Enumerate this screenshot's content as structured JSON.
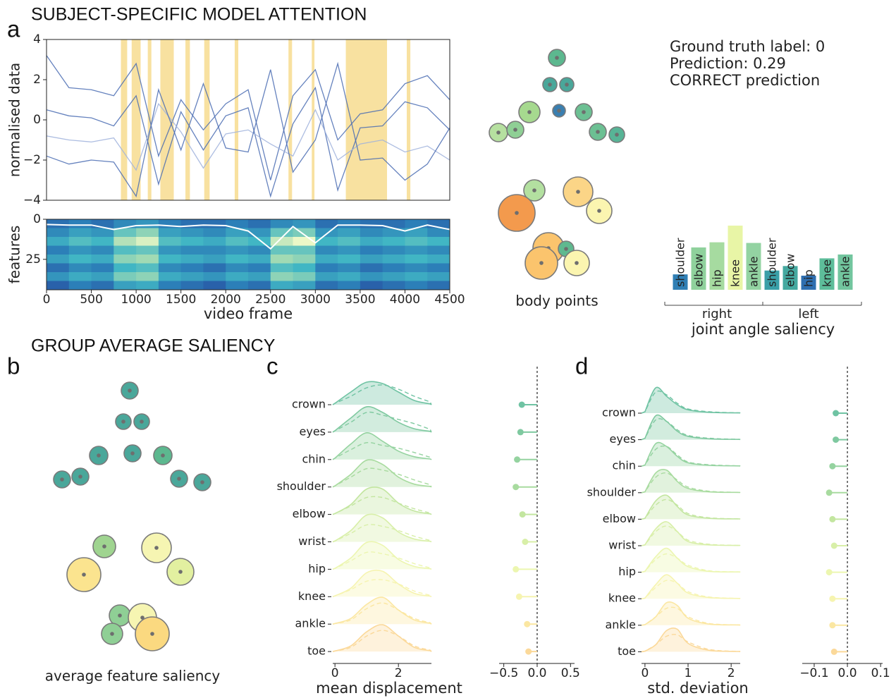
{
  "headings": [
    "SUBJECT-SPECIFIC MODEL ATTENTION",
    "GROUP AVERAGE SALIENCY"
  ],
  "chart_data": [
    {
      "type": "line",
      "panel": "a",
      "ylabel": "normalised data",
      "xlim": [
        0,
        4500
      ],
      "ylim": [
        -4,
        4
      ],
      "yticks": [
        4,
        2,
        0,
        {
          "value": -2,
          "label": "−2"
        },
        {
          "value": -4,
          "label": "−4"
        }
      ],
      "highlight_color": "#f8e1a0",
      "highlights": [
        [
          830,
          900
        ],
        [
          950,
          1050
        ],
        [
          1130,
          1170
        ],
        [
          1270,
          1420
        ],
        [
          1550,
          1600
        ],
        [
          1760,
          1820
        ],
        [
          2100,
          2140
        ],
        [
          2700,
          2740
        ],
        [
          2960,
          2990
        ],
        [
          3340,
          3800
        ],
        [
          4020,
          4060
        ]
      ],
      "x": [
        0,
        250,
        500,
        750,
        1000,
        1250,
        1500,
        1750,
        2000,
        2250,
        2500,
        2750,
        3000,
        3250,
        3500,
        3750,
        4000,
        4250,
        4500
      ],
      "series": [
        {
          "color": "#4a6cb3",
          "values": [
            3.2,
            1.6,
            1.5,
            1.2,
            2.8,
            -1.8,
            1.0,
            -0.5,
            0.8,
            1.5,
            -3.0,
            1.2,
            2.5,
            -1.0,
            0.3,
            0.5,
            1.8,
            2.2,
            1.0
          ]
        },
        {
          "color": "#4a6cb3",
          "values": [
            0.5,
            0.2,
            0.1,
            -0.3,
            1.2,
            -3.2,
            0.4,
            -1.5,
            0.2,
            0.6,
            -3.8,
            -0.2,
            1.6,
            -3.5,
            -0.4,
            -0.3,
            0.9,
            0.6,
            -0.5
          ]
        },
        {
          "color": "#9fb2dc",
          "values": [
            -0.8,
            -1.0,
            -1.1,
            -0.9,
            -2.5,
            0.8,
            -0.6,
            -2.4,
            -0.7,
            -0.5,
            -1.2,
            -1.8,
            0.5,
            -2.0,
            -1.2,
            -1.0,
            -1.6,
            -1.3,
            -2.0
          ]
        },
        {
          "color": "#4a6cb3",
          "values": [
            -1.8,
            -2.2,
            -2.0,
            -2.1,
            -3.8,
            1.5,
            -1.5,
            1.8,
            -1.4,
            -1.6,
            2.5,
            -2.6,
            -1.0,
            2.8,
            -2.0,
            -1.9,
            -3.0,
            -2.2,
            -0.4
          ]
        }
      ]
    },
    {
      "type": "heatmap",
      "ylabel": "features",
      "xlabel": "video frame",
      "xlim": [
        0,
        4500
      ],
      "xticks": [
        0,
        500,
        1000,
        1500,
        2000,
        2500,
        3000,
        3500,
        4000,
        4500
      ],
      "ylim": [
        0,
        44
      ],
      "yticks": [
        0,
        25
      ],
      "colormap": [
        "#253494",
        "#2c7fb8",
        "#41b6c4",
        "#a1dab4",
        "#ffffcc"
      ],
      "values": [
        [
          0.2,
          0.25,
          0.2,
          0.3,
          0.35,
          0.25,
          0.2,
          0.2,
          0.25,
          0.2,
          0.3,
          0.35,
          0.2,
          0.25,
          0.2,
          0.2,
          0.25,
          0.2
        ],
        [
          0.3,
          0.4,
          0.35,
          0.6,
          0.7,
          0.4,
          0.35,
          0.3,
          0.4,
          0.35,
          0.6,
          0.65,
          0.35,
          0.4,
          0.3,
          0.35,
          0.4,
          0.3
        ],
        [
          0.45,
          0.55,
          0.5,
          0.8,
          0.9,
          0.55,
          0.5,
          0.45,
          0.55,
          0.5,
          0.85,
          0.95,
          0.5,
          0.55,
          0.45,
          0.5,
          0.55,
          0.5
        ],
        [
          0.25,
          0.35,
          0.3,
          0.55,
          0.6,
          0.35,
          0.3,
          0.3,
          0.35,
          0.3,
          0.6,
          0.6,
          0.3,
          0.35,
          0.25,
          0.3,
          0.35,
          0.3
        ],
        [
          0.4,
          0.5,
          0.45,
          0.7,
          0.75,
          0.5,
          0.45,
          0.4,
          0.5,
          0.45,
          0.75,
          0.7,
          0.45,
          0.5,
          0.4,
          0.45,
          0.5,
          0.45
        ],
        [
          0.2,
          0.3,
          0.25,
          0.5,
          0.55,
          0.3,
          0.25,
          0.2,
          0.3,
          0.25,
          0.55,
          0.5,
          0.25,
          0.3,
          0.2,
          0.25,
          0.3,
          0.25
        ],
        [
          0.35,
          0.45,
          0.4,
          0.65,
          0.7,
          0.45,
          0.4,
          0.35,
          0.45,
          0.4,
          0.7,
          0.65,
          0.4,
          0.45,
          0.35,
          0.4,
          0.45,
          0.4
        ],
        [
          0.15,
          0.25,
          0.2,
          0.4,
          0.45,
          0.25,
          0.2,
          0.15,
          0.25,
          0.2,
          0.45,
          0.4,
          0.2,
          0.25,
          0.15,
          0.2,
          0.25,
          0.2
        ]
      ],
      "x": [
        0,
        250,
        500,
        750,
        1000,
        1250,
        1500,
        1750,
        2000,
        2250,
        2500,
        2750,
        3000,
        3250,
        3500,
        3750,
        4000,
        4250,
        4500
      ],
      "attention": [
        0.92,
        0.9,
        0.9,
        0.75,
        0.88,
        0.9,
        0.85,
        0.9,
        0.88,
        0.7,
        0.1,
        0.85,
        0.3,
        0.9,
        0.9,
        0.88,
        0.7,
        0.9,
        0.75
      ]
    },
    {
      "type": "bubble",
      "xlabel": "body points",
      "x": [
        50,
        45,
        57,
        30.5,
        51.5,
        69,
        8.5,
        20.5,
        79,
        92.5,
        34,
        21.5,
        65,
        80,
        44,
        39,
        56.5,
        64
      ],
      "y": [
        6,
        25,
        25,
        44.5,
        43.5,
        44.5,
        59,
        57,
        58.5,
        60.5,
        100,
        116,
        101,
        114.5,
        141,
        151.5,
        141.5,
        151.5
      ],
      "size": [
        12,
        10,
        10,
        15,
        9,
        12,
        13,
        12,
        12,
        11,
        15,
        26,
        21,
        18,
        22,
        23,
        11,
        18
      ],
      "colors": [
        "#5cb88f",
        "#4aa79a",
        "#4aa79a",
        "#a6d98f",
        "#3a7fb0",
        "#6cc093",
        "#b6e0a0",
        "#8fcf95",
        "#6cc093",
        "#57b496",
        "#b3e0a0",
        "#f39a4d",
        "#fbd587",
        "#fbf5b0",
        "#fbc46d",
        "#fbc46d",
        "#5fb98f",
        "#fbf5b0"
      ]
    },
    {
      "type": "bar",
      "annotations": [
        "Ground truth label: 0",
        "Prediction: 0.29",
        "CORRECT prediction"
      ],
      "categories": [
        "shoulder",
        "elbow",
        "hip",
        "knee",
        "ankle",
        "shoulder",
        "elbow",
        "hip",
        "knee",
        "ankle"
      ],
      "group_labels": [
        "right",
        "left"
      ],
      "xlabel": "joint angle saliency",
      "ylim": [
        0,
        1
      ],
      "values": [
        0.24,
        0.66,
        0.74,
        1.0,
        0.73,
        0.3,
        0.37,
        0.22,
        0.49,
        0.55
      ],
      "colors": [
        "#2f7fb5",
        "#8fd19c",
        "#a6dba0",
        "#e8f5a6",
        "#93d3a2",
        "#3a9fa8",
        "#45a9a0",
        "#2f6fb0",
        "#5dbd9a",
        "#72c59e"
      ]
    },
    {
      "type": "bubble",
      "panel": "b",
      "xlabel": "average feature saliency",
      "x": [
        62,
        57.5,
        70.5,
        40,
        64,
        85.5,
        14,
        27,
        97,
        113.5,
        44,
        29.5,
        81,
        98,
        55,
        71,
        49.5,
        78
      ],
      "y": [
        7,
        29,
        29,
        53,
        51.5,
        53,
        70,
        68,
        69.5,
        72,
        117.5,
        137.5,
        118.5,
        135.5,
        166.5,
        168,
        179.5,
        179.5
      ],
      "size": [
        12,
        11,
        11,
        13,
        12,
        13,
        12,
        12,
        12,
        12,
        16,
        24,
        21,
        19,
        15,
        20,
        15,
        24
      ],
      "colors": [
        "#4aa79a",
        "#4aa79a",
        "#4aa79a",
        "#4aa79a",
        "#4aa79a",
        "#5cb88f",
        "#4aa79a",
        "#4aa79a",
        "#4aa79a",
        "#4aa79a",
        "#9fd490",
        "#fbe48f",
        "#f6f5b2",
        "#e2f0a0",
        "#8fcf95",
        "#f6f5b2",
        "#8fcf95",
        "#fbd980"
      ]
    },
    {
      "type": "ridgeline",
      "panel": "c",
      "xlabel": "mean displacement",
      "xlim": [
        -0.07,
        3.04
      ],
      "xticks": [
        0,
        2
      ],
      "categories": [
        "crown",
        "eyes",
        "chin",
        "shoulder",
        "elbow",
        "wrist",
        "hip",
        "knee",
        "ankle",
        "toe"
      ],
      "colors": [
        "#6fc3a3",
        "#7fc9a0",
        "#95d3a0",
        "#a8db9f",
        "#c3e6a0",
        "#d8efa8",
        "#ecf6b0",
        "#f6f4b0",
        "#fbe7a2",
        "#fbd99a"
      ],
      "x": [
        0,
        0.5,
        1,
        1.5,
        2,
        2.5,
        3
      ],
      "solid": [
        [
          0.05,
          0.45,
          0.8,
          0.75,
          0.45,
          0.15,
          0.03
        ],
        [
          0.05,
          0.5,
          0.9,
          0.7,
          0.35,
          0.12,
          0.03
        ],
        [
          0.05,
          0.55,
          0.95,
          0.65,
          0.3,
          0.1,
          0.02
        ],
        [
          0.04,
          0.45,
          0.95,
          0.8,
          0.35,
          0.1,
          0.02
        ],
        [
          0.03,
          0.35,
          0.9,
          0.9,
          0.4,
          0.12,
          0.02
        ],
        [
          0.03,
          0.4,
          0.95,
          0.85,
          0.35,
          0.1,
          0.02
        ],
        [
          0.03,
          0.4,
          0.95,
          0.85,
          0.35,
          0.1,
          0.02
        ],
        [
          0.03,
          0.3,
          0.85,
          0.9,
          0.45,
          0.12,
          0.02
        ],
        [
          0.02,
          0.2,
          0.7,
          0.95,
          0.5,
          0.15,
          0.03
        ],
        [
          0.02,
          0.2,
          0.7,
          0.95,
          0.55,
          0.15,
          0.03
        ]
      ],
      "dashed": [
        [
          0.05,
          0.3,
          0.6,
          0.7,
          0.55,
          0.3,
          0.1
        ],
        [
          0.05,
          0.35,
          0.7,
          0.6,
          0.45,
          0.3,
          0.1
        ],
        [
          0.05,
          0.35,
          0.6,
          0.5,
          0.4,
          0.25,
          0.08
        ],
        [
          0.04,
          0.35,
          0.65,
          0.6,
          0.45,
          0.25,
          0.08
        ],
        [
          0.03,
          0.3,
          0.6,
          0.6,
          0.4,
          0.2,
          0.05
        ],
        [
          0.03,
          0.3,
          0.6,
          0.55,
          0.4,
          0.2,
          0.05
        ],
        [
          0.03,
          0.3,
          0.6,
          0.55,
          0.4,
          0.2,
          0.05
        ],
        [
          0.03,
          0.25,
          0.55,
          0.6,
          0.45,
          0.2,
          0.05
        ],
        [
          0.02,
          0.15,
          0.55,
          0.75,
          0.5,
          0.2,
          0.05
        ],
        [
          0.02,
          0.15,
          0.55,
          0.75,
          0.55,
          0.2,
          0.05
        ]
      ]
    },
    {
      "type": "lollipop",
      "xlim": [
        -0.57,
        0.56
      ],
      "xticks": [
        {
          "value": -0.5,
          "label": "−0.5"
        },
        {
          "value": 0,
          "label": "0.0"
        },
        0.5
      ],
      "values": [
        -0.23,
        -0.25,
        -0.3,
        -0.32,
        -0.22,
        -0.18,
        -0.32,
        -0.27,
        -0.15,
        -0.13
      ],
      "colors": [
        "#6fc3a3",
        "#7fc9a0",
        "#95d3a0",
        "#a8db9f",
        "#c3e6a0",
        "#d8efa8",
        "#ecf6b0",
        "#f6f4b0",
        "#fbe7a2",
        "#fbd99a"
      ]
    },
    {
      "type": "ridgeline",
      "panel": "d",
      "xlabel": "std. deviation",
      "xlim": [
        -0.08,
        2.21
      ],
      "xticks": [
        0,
        1,
        2
      ],
      "categories": [
        "crown",
        "eyes",
        "chin",
        "shoulder",
        "elbow",
        "wrist",
        "hip",
        "knee",
        "ankle",
        "toe"
      ],
      "colors": [
        "#6fc3a3",
        "#7fc9a0",
        "#95d3a0",
        "#a8db9f",
        "#c3e6a0",
        "#d8efa8",
        "#ecf6b0",
        "#f6f4b0",
        "#fbe7a2",
        "#fbd99a"
      ],
      "x": [
        0,
        0.25,
        0.5,
        0.75,
        1,
        1.5,
        2.2
      ],
      "solid": [
        [
          0.05,
          0.9,
          0.6,
          0.3,
          0.12,
          0.03,
          0.01
        ],
        [
          0.05,
          0.85,
          0.65,
          0.3,
          0.12,
          0.03,
          0.01
        ],
        [
          0.04,
          0.8,
          0.7,
          0.35,
          0.12,
          0.03,
          0.01
        ],
        [
          0.03,
          0.7,
          0.8,
          0.4,
          0.15,
          0.03,
          0.01
        ],
        [
          0.03,
          0.65,
          0.85,
          0.45,
          0.15,
          0.03,
          0.01
        ],
        [
          0.03,
          0.6,
          0.85,
          0.5,
          0.15,
          0.03,
          0.01
        ],
        [
          0.03,
          0.55,
          0.85,
          0.5,
          0.2,
          0.03,
          0.01
        ],
        [
          0.02,
          0.5,
          0.85,
          0.55,
          0.2,
          0.04,
          0.01
        ],
        [
          0.02,
          0.3,
          0.8,
          0.7,
          0.25,
          0.04,
          0.01
        ],
        [
          0.02,
          0.25,
          0.75,
          0.8,
          0.3,
          0.05,
          0.01
        ]
      ],
      "dashed": [
        [
          0.05,
          0.75,
          0.65,
          0.35,
          0.15,
          0.05,
          0.01
        ],
        [
          0.05,
          0.7,
          0.65,
          0.35,
          0.15,
          0.05,
          0.01
        ],
        [
          0.04,
          0.6,
          0.7,
          0.4,
          0.15,
          0.05,
          0.01
        ],
        [
          0.03,
          0.55,
          0.7,
          0.45,
          0.2,
          0.05,
          0.01
        ],
        [
          0.03,
          0.5,
          0.7,
          0.5,
          0.2,
          0.05,
          0.01
        ],
        [
          0.03,
          0.5,
          0.7,
          0.5,
          0.2,
          0.05,
          0.01
        ],
        [
          0.03,
          0.45,
          0.65,
          0.5,
          0.25,
          0.05,
          0.01
        ],
        [
          0.02,
          0.4,
          0.65,
          0.55,
          0.25,
          0.06,
          0.01
        ],
        [
          0.02,
          0.3,
          0.6,
          0.6,
          0.3,
          0.06,
          0.01
        ],
        [
          0.02,
          0.25,
          0.55,
          0.6,
          0.35,
          0.08,
          0.01
        ]
      ]
    },
    {
      "type": "lollipop",
      "xlim": [
        -0.136,
        0.106
      ],
      "xticks": [
        {
          "value": -0.1,
          "label": "−0.1"
        },
        {
          "value": 0,
          "label": "0.0"
        },
        0.1
      ],
      "values": [
        -0.035,
        -0.035,
        -0.045,
        -0.055,
        -0.045,
        -0.04,
        -0.055,
        -0.045,
        -0.045,
        -0.04
      ],
      "colors": [
        "#6fc3a3",
        "#7fc9a0",
        "#95d3a0",
        "#a8db9f",
        "#c3e6a0",
        "#d8efa8",
        "#ecf6b0",
        "#f6f4b0",
        "#fbe7a2",
        "#fbd99a"
      ]
    }
  ]
}
